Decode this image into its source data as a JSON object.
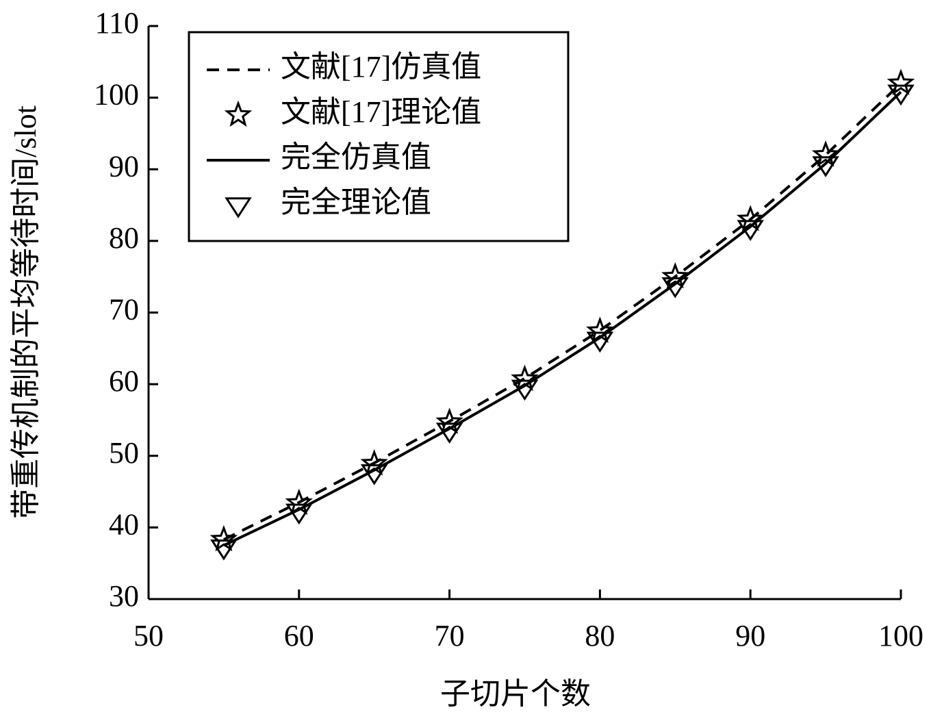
{
  "chart_data": {
    "type": "line",
    "x_label": "子切片个数",
    "y_label": "带重传机制的平均等待时间/slot",
    "x": [
      55,
      60,
      65,
      70,
      75,
      80,
      85,
      90,
      95,
      100
    ],
    "series": [
      {
        "name": "文献[17]仿真值",
        "color": "#000000",
        "line": "dashed",
        "marker": null,
        "values": [
          38.3,
          43.5,
          49,
          54.8,
          60.8,
          67.5,
          75,
          83,
          92,
          102
        ]
      },
      {
        "name": "文献[17]理论值",
        "color": "#000000",
        "line": null,
        "marker": "star",
        "values": [
          38.3,
          43.4,
          48.9,
          54.7,
          60.7,
          67.4,
          75,
          83,
          92,
          102
        ]
      },
      {
        "name": "完全仿真值",
        "color": "#000000",
        "line": "solid",
        "marker": null,
        "values": [
          37.5,
          42.5,
          48,
          53.8,
          59.8,
          66.5,
          74,
          82,
          90.8,
          100.8
        ]
      },
      {
        "name": "完全理论值",
        "color": "#000000",
        "line": null,
        "marker": "triangle-down",
        "values": [
          37.2,
          42.2,
          47.7,
          53.5,
          59.5,
          66.2,
          73.8,
          81.8,
          90.7,
          100.7
        ]
      }
    ],
    "xlim": [
      50,
      100
    ],
    "xticks": [
      50,
      60,
      70,
      80,
      90,
      100
    ],
    "ylim": [
      30,
      110
    ],
    "yticks": [
      30,
      40,
      50,
      60,
      70,
      80,
      90,
      100,
      110
    ],
    "grid": false,
    "legend": "upper left"
  }
}
